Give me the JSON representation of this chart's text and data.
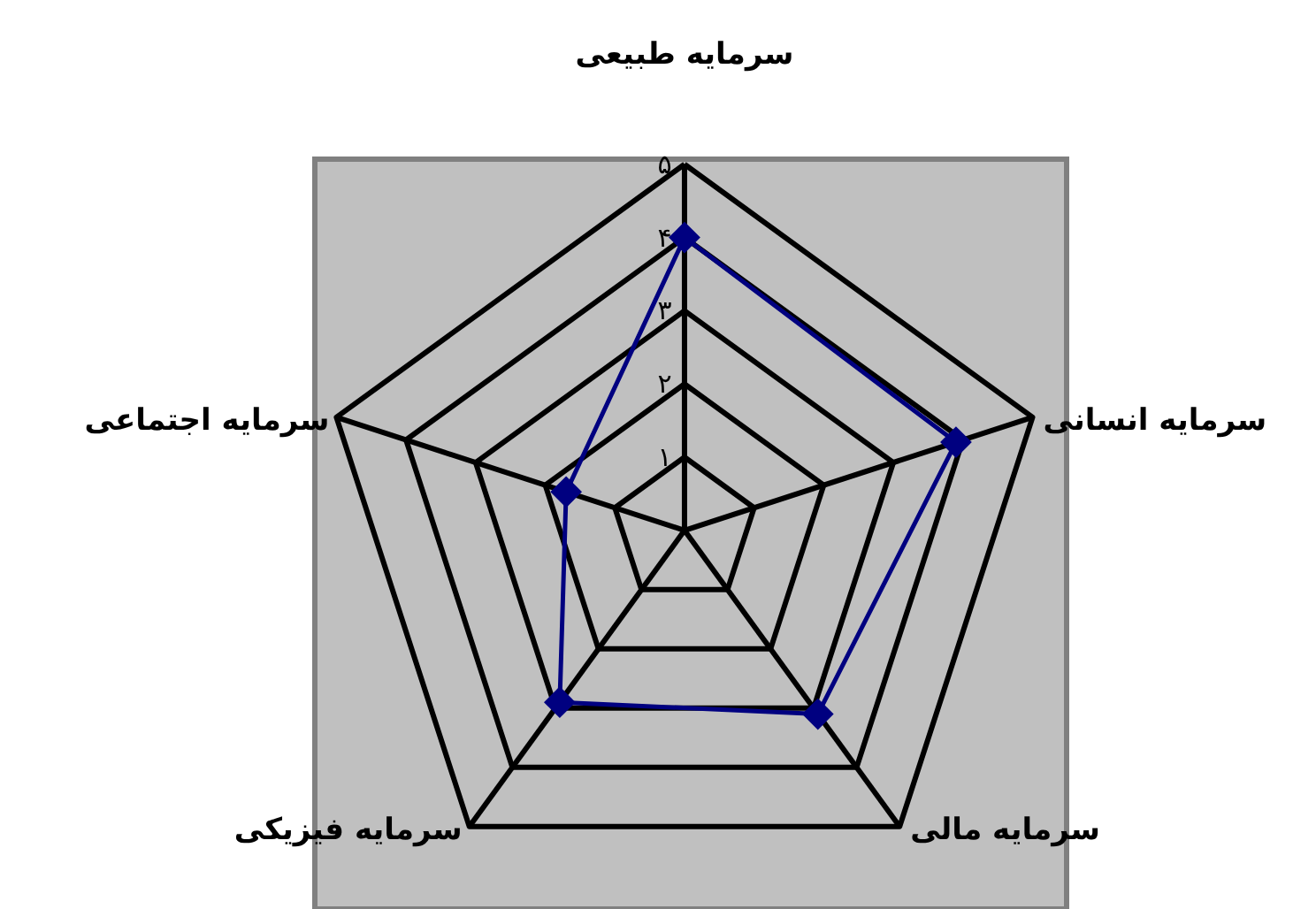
{
  "chart_data": {
    "type": "radar",
    "categories": [
      "سرمایه طبیعی",
      "سرمایه انسانی",
      "سرمایه مالی",
      "سرمایه فیزیکی",
      "سرمایه اجتماعی"
    ],
    "series": [
      {
        "color": "#000080",
        "values": [
          4,
          3.9,
          3.1,
          2.9,
          1.7
        ]
      }
    ],
    "ylim": [
      0,
      5
    ],
    "yticks": [
      {
        "value": 1,
        "label": "۱"
      },
      {
        "value": 2,
        "label": "۲"
      },
      {
        "value": 3,
        "label": "۳"
      },
      {
        "value": 4,
        "label": "۴"
      },
      {
        "value": 5,
        "label": "۵"
      }
    ],
    "grid": true,
    "marker": "diamond",
    "line_style": "solid"
  }
}
